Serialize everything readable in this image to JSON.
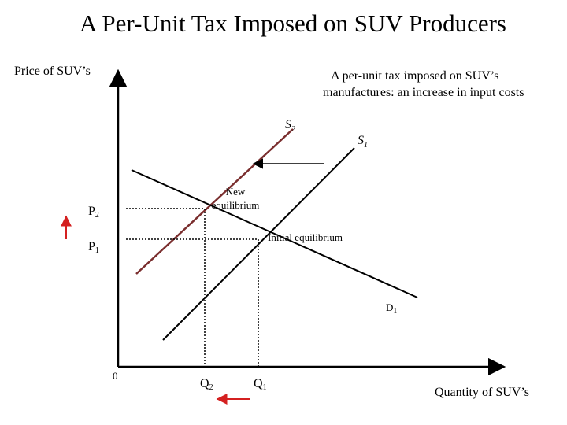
{
  "title": "A Per-Unit Tax Imposed on SUV Producers",
  "y_axis_label": "Price of SUV’s",
  "x_axis_label": "Quantity of SUV’s",
  "origin_label": "0",
  "annotation": {
    "line1": "A per-unit tax imposed on SUV’s",
    "line2": "manufactures: an increase in input costs"
  },
  "curves": {
    "s2": {
      "base": "S",
      "sub": "2"
    },
    "s1": {
      "base": "S",
      "sub": "1"
    },
    "d1": {
      "base": "D",
      "sub": "1"
    }
  },
  "prices": {
    "p2": {
      "base": "P",
      "sub": "2"
    },
    "p1": {
      "base": "P",
      "sub": "1"
    }
  },
  "quantities": {
    "q2": {
      "base": "Q",
      "sub": "2"
    },
    "q1": {
      "base": "Q",
      "sub": "1"
    }
  },
  "points": {
    "new_eq": {
      "line1": "New",
      "line2": "equilibrium"
    },
    "initial_eq": "Initial equilibrium"
  },
  "colors": {
    "axes": "#000000",
    "s2_line": "#7a2e2e",
    "arrow_red": "#d42020",
    "dotted": "#000000"
  }
}
